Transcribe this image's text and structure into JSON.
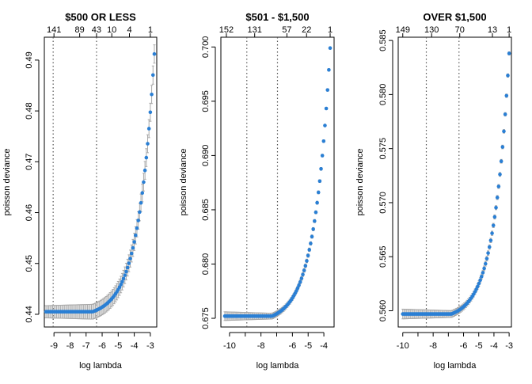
{
  "chart_data": [
    {
      "type": "scatter",
      "title": "$500 OR LESS",
      "xlabel": "log lambda",
      "ylabel": "poisson deviance",
      "xlim": [
        -9.6,
        -2.6
      ],
      "ylim": [
        0.4375,
        0.4945
      ],
      "x_ticks": [
        -9,
        -8,
        -7,
        -6,
        -5,
        -4,
        -3
      ],
      "x_tick_labels": [
        "-9",
        "-8",
        "-7",
        "-6",
        "-5",
        "-4",
        "-3"
      ],
      "y_ticks": [
        0.44,
        0.45,
        0.46,
        0.47,
        0.48,
        0.49
      ],
      "y_tick_labels": [
        "0.44",
        "0.45",
        "0.46",
        "0.47",
        "0.48",
        "0.49"
      ],
      "top_ticks": [
        -9.0,
        -7.4,
        -6.35,
        -5.4,
        -4.3,
        -3.0
      ],
      "top_tick_labels": [
        "141",
        "89",
        "43",
        "10",
        "4",
        "1"
      ],
      "vlines": [
        -9.05,
        -6.35
      ],
      "curve": {
        "xmin": -9.5,
        "xmax": -2.75,
        "base": 0.4405,
        "top": 0.4912,
        "knee": -6.6,
        "n": 82
      },
      "error_band": {
        "left": 0.0012,
        "right": 0.0018
      },
      "colors": {
        "point": "#2a7fd4",
        "errorbar": "#a9a9a9",
        "vline": "#555555"
      }
    },
    {
      "type": "scatter",
      "title": "$501 - $1,500",
      "xlabel": "log lambda",
      "ylabel": "poisson deviance",
      "xlim": [
        -10.55,
        -3.35
      ],
      "ylim": [
        0.6742,
        0.7009
      ],
      "x_ticks": [
        -10,
        -9,
        -8,
        -7,
        -6,
        -5,
        -4
      ],
      "x_tick_labels": [
        "-10",
        "",
        "-8",
        "",
        "-6",
        "-5",
        "-4"
      ],
      "y_ticks": [
        0.675,
        0.68,
        0.685,
        0.69,
        0.695,
        0.7
      ],
      "y_tick_labels": [
        "0.675",
        "0.680",
        "0.685",
        "0.690",
        "0.695",
        "0.700"
      ],
      "top_ticks": [
        -10.2,
        -8.4,
        -6.35,
        -5.1,
        -3.6
      ],
      "top_tick_labels": [
        "152",
        "131",
        "57",
        "22",
        "1"
      ],
      "vlines": [
        -8.9,
        -6.95
      ],
      "curve": {
        "xmin": -10.3,
        "xmax": -3.6,
        "base": 0.6752,
        "top": 0.6999,
        "knee": -7.3,
        "n": 82
      },
      "error_band": {
        "left": 0.0004,
        "right": 0.0001
      },
      "colors": {
        "point": "#2a7fd4",
        "errorbar": "#a9a9a9",
        "vline": "#555555"
      }
    },
    {
      "type": "scatter",
      "title": "OVER $1,500",
      "xlabel": "log lambda",
      "ylabel": "poisson deviance",
      "xlim": [
        -10.3,
        -2.85
      ],
      "ylim": [
        0.5585,
        0.5853
      ],
      "x_ticks": [
        -10,
        -9,
        -8,
        -7,
        -6,
        -5,
        -4,
        -3
      ],
      "x_tick_labels": [
        "-10",
        "",
        "-8",
        "",
        "-6",
        "-5",
        "-4",
        "-3"
      ],
      "y_ticks": [
        0.56,
        0.565,
        0.57,
        0.575,
        0.58,
        0.585
      ],
      "y_tick_labels": [
        "0.560",
        "0.565",
        "0.570",
        "0.575",
        "0.580",
        "0.585"
      ],
      "top_ticks": [
        -10.0,
        -8.1,
        -6.25,
        -4.1,
        -3.0
      ],
      "top_tick_labels": [
        "149",
        "130",
        "70",
        "13",
        "1"
      ],
      "vlines": [
        -8.45,
        -6.3
      ],
      "curve": {
        "xmin": -10.0,
        "xmax": -3.0,
        "base": 0.5597,
        "top": 0.5838,
        "knee": -6.8,
        "n": 82
      },
      "error_band": {
        "left": 0.00045,
        "right": 0.00015
      },
      "colors": {
        "point": "#2a7fd4",
        "errorbar": "#a9a9a9",
        "vline": "#555555"
      }
    }
  ]
}
